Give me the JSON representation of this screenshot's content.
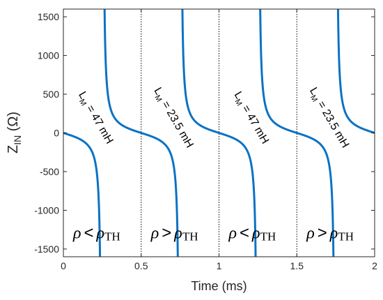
{
  "chart_data": {
    "type": "line",
    "xlabel": "Time (ms)",
    "ylabel": {
      "main": "Z",
      "sub": "IN",
      "unit": " (Ω)"
    },
    "xlim": [
      0,
      2
    ],
    "ylim": [
      -1600,
      1600
    ],
    "xticks": [
      0,
      0.5,
      1,
      1.5,
      2
    ],
    "xtick_labels": [
      "0",
      "0.5",
      "1",
      "1.5",
      "2"
    ],
    "yticks": [
      1500,
      1000,
      500,
      0,
      -500,
      -1000,
      -1500
    ],
    "ytick_labels": [
      "1500",
      "1000",
      "500",
      "0",
      "-500",
      "-1000",
      "-1500"
    ],
    "line_color": "#0a72c4",
    "phase_boundaries": [
      0.5,
      1.0,
      1.5
    ],
    "half_period_ms": 0.5,
    "pole_offset_ms": 0.245,
    "curve_scale_ohm": 100,
    "segments": [
      {
        "start": 0.0,
        "label": {
          "main": "L",
          "sub": "M",
          "value": " = 47 mH"
        },
        "relation": {
          "left": "ρ",
          "op": "<",
          "right": "ρ",
          "right_sub": "TH"
        }
      },
      {
        "start": 0.5,
        "label": {
          "main": "L",
          "sub": "M",
          "value": " = 23.5 mH"
        },
        "relation": {
          "left": "ρ",
          "op": ">",
          "right": "ρ",
          "right_sub": "TH"
        }
      },
      {
        "start": 1.0,
        "label": {
          "main": "L",
          "sub": "M",
          "value": " = 47 mH"
        },
        "relation": {
          "left": "ρ",
          "op": "<",
          "right": "ρ",
          "right_sub": "TH"
        }
      },
      {
        "start": 1.5,
        "label": {
          "main": "L",
          "sub": "M",
          "value": " = 23.5 mH"
        },
        "relation": {
          "left": "ρ",
          "op": ">",
          "right": "ρ",
          "right_sub": "TH"
        }
      }
    ]
  }
}
